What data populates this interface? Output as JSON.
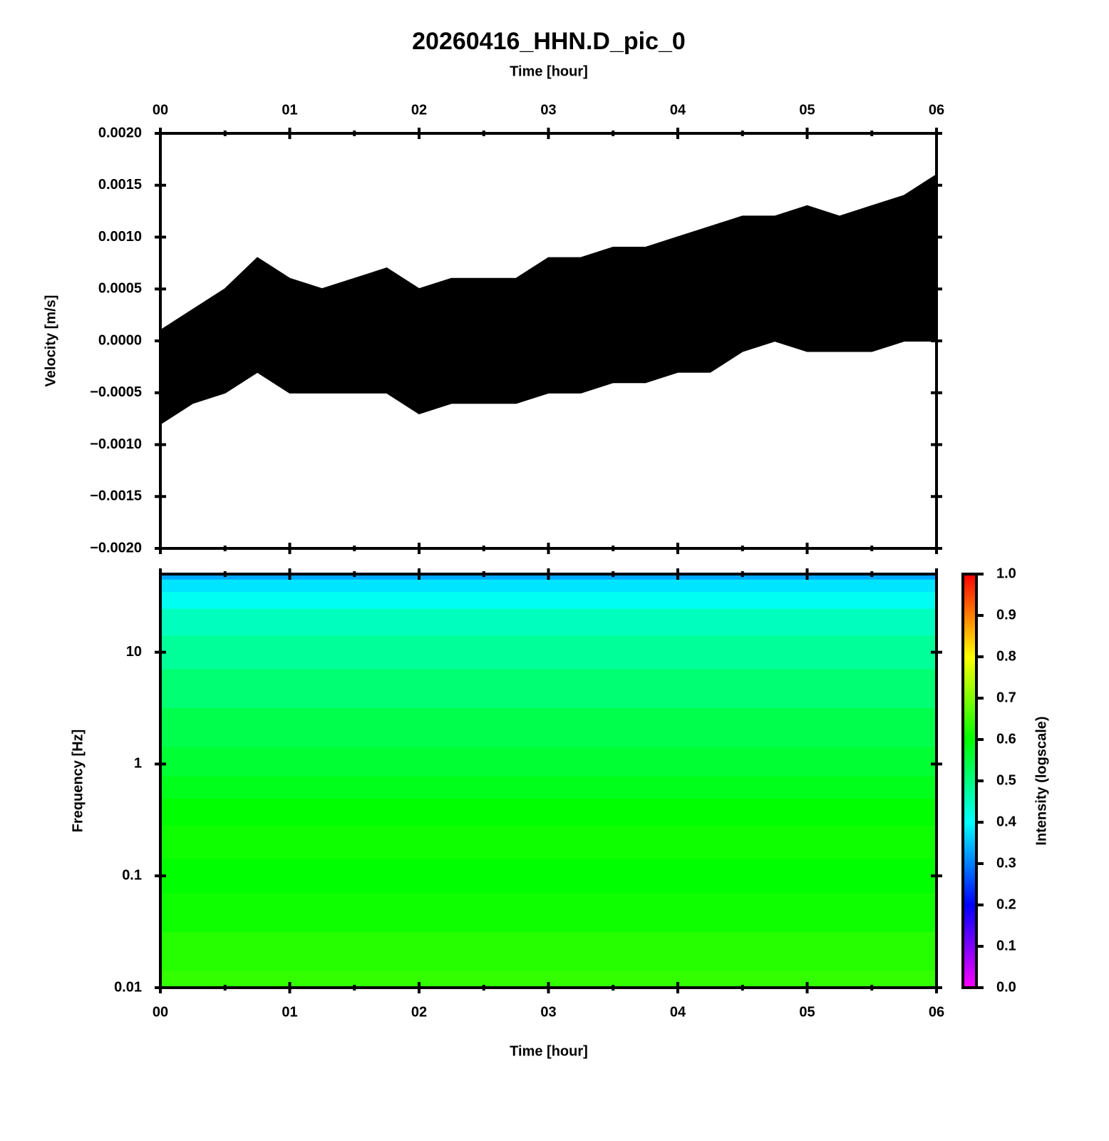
{
  "chart_data": [
    {
      "type": "band",
      "title": "20260416_HHN.D_pic_0",
      "x_label": "Time [hour]",
      "y_label": "Velocity [m/s]",
      "color": "#000000",
      "x": [
        0,
        0.25,
        0.5,
        0.75,
        1,
        1.25,
        1.5,
        1.75,
        2,
        2.25,
        2.5,
        2.75,
        3,
        3.25,
        3.5,
        3.75,
        4,
        4.25,
        4.5,
        4.75,
        5,
        5.25,
        5.5,
        5.75,
        6
      ],
      "upper": [
        0.0001,
        0.0003,
        0.0005,
        0.0008,
        0.0006,
        0.0005,
        0.0006,
        0.0007,
        0.0005,
        0.0006,
        0.0006,
        0.0006,
        0.0008,
        0.0008,
        0.0009,
        0.0009,
        0.001,
        0.0011,
        0.0012,
        0.0012,
        0.0013,
        0.0012,
        0.0013,
        0.0014,
        0.0016
      ],
      "lower": [
        -0.0008,
        -0.0006,
        -0.0005,
        -0.0003,
        -0.0005,
        -0.0005,
        -0.0005,
        -0.0005,
        -0.0007,
        -0.0006,
        -0.0006,
        -0.0006,
        -0.0005,
        -0.0005,
        -0.0004,
        -0.0004,
        -0.0003,
        -0.0003,
        -0.0001,
        0,
        -0.0001,
        -0.0001,
        -0.0001,
        0,
        0
      ],
      "xlim": [
        0,
        6
      ],
      "xticks": [
        {
          "value": 0,
          "label": "00"
        },
        {
          "value": 1,
          "label": "01"
        },
        {
          "value": 2,
          "label": "02"
        },
        {
          "value": 3,
          "label": "03"
        },
        {
          "value": 4,
          "label": "04"
        },
        {
          "value": 5,
          "label": "05"
        },
        {
          "value": 6,
          "label": "06"
        }
      ],
      "xminor": [
        0.5,
        1.5,
        2.5,
        3.5,
        4.5,
        5.5
      ],
      "ylim": [
        -0.002,
        0.002
      ],
      "yticks": [
        {
          "value": 0.002,
          "label": "0.0020"
        },
        {
          "value": 0.0015,
          "label": "0.0015"
        },
        {
          "value": 0.001,
          "label": "0.0010"
        },
        {
          "value": 0.0005,
          "label": "0.0005"
        },
        {
          "value": 0,
          "label": "0.0000"
        },
        {
          "value": -0.0005,
          "label": "−0.0005"
        },
        {
          "value": -0.001,
          "label": "−0.0010"
        },
        {
          "value": -0.0015,
          "label": "−0.0015"
        },
        {
          "value": -0.002,
          "label": "−0.0020"
        }
      ]
    },
    {
      "type": "heatmap",
      "x_label": "Time [hour]",
      "y_label": "Frequency [Hz]",
      "colorbar_label": "Intensity (logscale)",
      "y_log": true,
      "y": [
        50,
        40,
        30,
        20,
        10,
        5,
        2,
        1,
        0.6,
        0.4,
        0.2,
        0.1,
        0.05,
        0.02,
        0.01
      ],
      "values": [
        0.33,
        0.38,
        0.41,
        0.45,
        0.48,
        0.51,
        0.54,
        0.56,
        0.58,
        0.6,
        0.61,
        0.6,
        0.61,
        0.63,
        0.64
      ],
      "colormap": [
        "#ff00ff",
        "#0000ff",
        "#00ffff",
        "#00ff00",
        "#ffff00",
        "#ff0000"
      ],
      "xlim": [
        0,
        6
      ],
      "xticks": [
        {
          "value": 0,
          "label": "00"
        },
        {
          "value": 1,
          "label": "01"
        },
        {
          "value": 2,
          "label": "02"
        },
        {
          "value": 3,
          "label": "03"
        },
        {
          "value": 4,
          "label": "04"
        },
        {
          "value": 5,
          "label": "05"
        },
        {
          "value": 6,
          "label": "06"
        }
      ],
      "xminor": [
        0.5,
        1.5,
        2.5,
        3.5,
        4.5,
        5.5
      ],
      "ylim": [
        0.01,
        50
      ],
      "yticks": [
        0.01,
        0.1,
        1,
        10
      ],
      "clim": [
        0,
        1
      ],
      "cticks": [
        {
          "value": 0,
          "label": "0.0"
        },
        {
          "value": 0.1,
          "label": "0.1"
        },
        {
          "value": 0.2,
          "label": "0.2"
        },
        {
          "value": 0.3,
          "label": "0.3"
        },
        {
          "value": 0.4,
          "label": "0.4"
        },
        {
          "value": 0.5,
          "label": "0.5"
        },
        {
          "value": 0.6,
          "label": "0.6"
        },
        {
          "value": 0.7,
          "label": "0.7"
        },
        {
          "value": 0.8,
          "label": "0.8"
        },
        {
          "value": 0.9,
          "label": "0.9"
        },
        {
          "value": 1,
          "label": "1.0"
        }
      ]
    }
  ]
}
